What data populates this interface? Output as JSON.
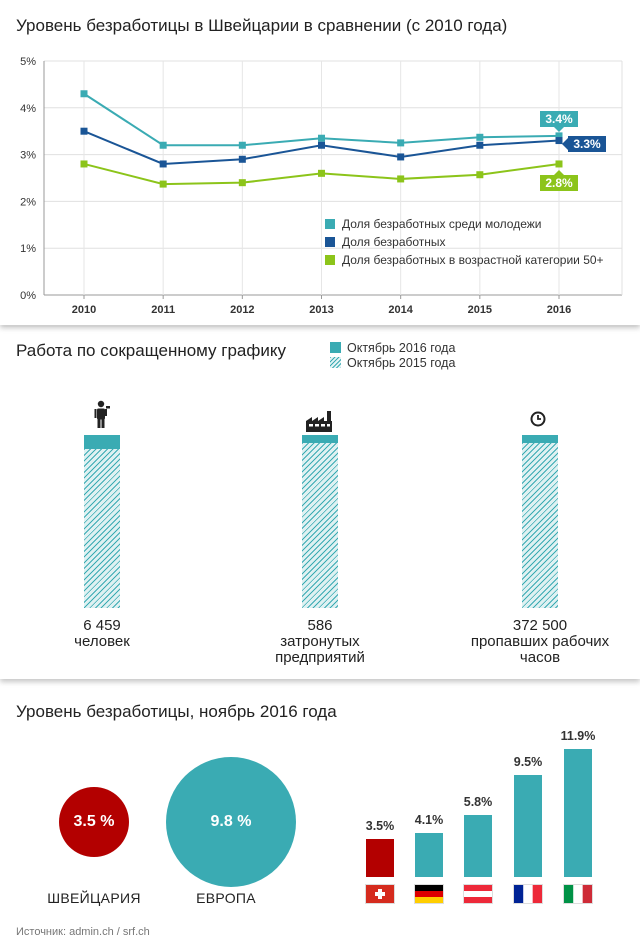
{
  "line_chart": {
    "title": "Уровень безработицы в Швейцарии в сравнении (с 2010 года)"
  },
  "short_time": {
    "title": "Работа по сокращенному графику",
    "legend_current": "Октябрь 2016 года",
    "legend_previous": "Октябрь 2015 года",
    "items": [
      {
        "value": "6 459",
        "label": "человек",
        "icon": "worker-icon"
      },
      {
        "value": "586",
        "label": "затронутых предприятий",
        "icon": "factory-icon"
      },
      {
        "value": "372 500",
        "label": "пропавших рабочих часов",
        "icon": "clock-icon"
      }
    ]
  },
  "comparison": {
    "title": "Уровень безработицы, ноябрь 2016 года",
    "switzerland_value": "3.5 %",
    "switzerland_label": "ШВЕЙЦАРИЯ",
    "europe_value": "9.8 %",
    "europe_label": "ЕВРОПА",
    "switzerland_color": "#b30000",
    "europe_color": "#3aabb3"
  },
  "source": "Источник: admin.ch / srf.ch",
  "chart_data": [
    {
      "type": "line",
      "title": "Уровень безработицы в Швейцарии в сравнении (с 2010 года)",
      "x": [
        "2010",
        "2011",
        "2012",
        "2013",
        "2014",
        "2015",
        "2016"
      ],
      "ylim": [
        0,
        5
      ],
      "yticks": [
        "0%",
        "1%",
        "2%",
        "3%",
        "4%",
        "5%"
      ],
      "grid": true,
      "legend_position": "bottom-right",
      "series": [
        {
          "name": "Доля безработных среди молодежи",
          "color": "#3aabb3",
          "values": [
            4.3,
            3.2,
            3.2,
            3.35,
            3.25,
            3.37,
            3.4
          ],
          "end_label": "3.4%"
        },
        {
          "name": "Доля безработных",
          "color": "#1a5596",
          "values": [
            3.5,
            2.8,
            2.9,
            3.2,
            2.95,
            3.2,
            3.3
          ],
          "end_label": "3.3%"
        },
        {
          "name": "Доля безработных в возрастной категории 50+",
          "color": "#8cc41a",
          "values": [
            2.8,
            2.37,
            2.4,
            2.6,
            2.48,
            2.57,
            2.8
          ],
          "end_label": "2.8%"
        }
      ]
    },
    {
      "type": "bar",
      "title": "Уровень безработицы, ноябрь 2016 года",
      "categories": [
        "Швейцария",
        "Германия",
        "Австрия",
        "Франция",
        "Италия"
      ],
      "flags": [
        "ch-flag",
        "de-flag",
        "at-flag",
        "fr-flag",
        "it-flag"
      ],
      "values": [
        3.5,
        4.1,
        5.8,
        9.5,
        11.9
      ],
      "labels": [
        "3.5%",
        "4.1%",
        "5.8%",
        "9.5%",
        "11.9%"
      ],
      "colors": [
        "#b30000",
        "#3aabb3",
        "#3aabb3",
        "#3aabb3",
        "#3aabb3"
      ],
      "ylim": [
        0,
        11.9
      ]
    }
  ]
}
